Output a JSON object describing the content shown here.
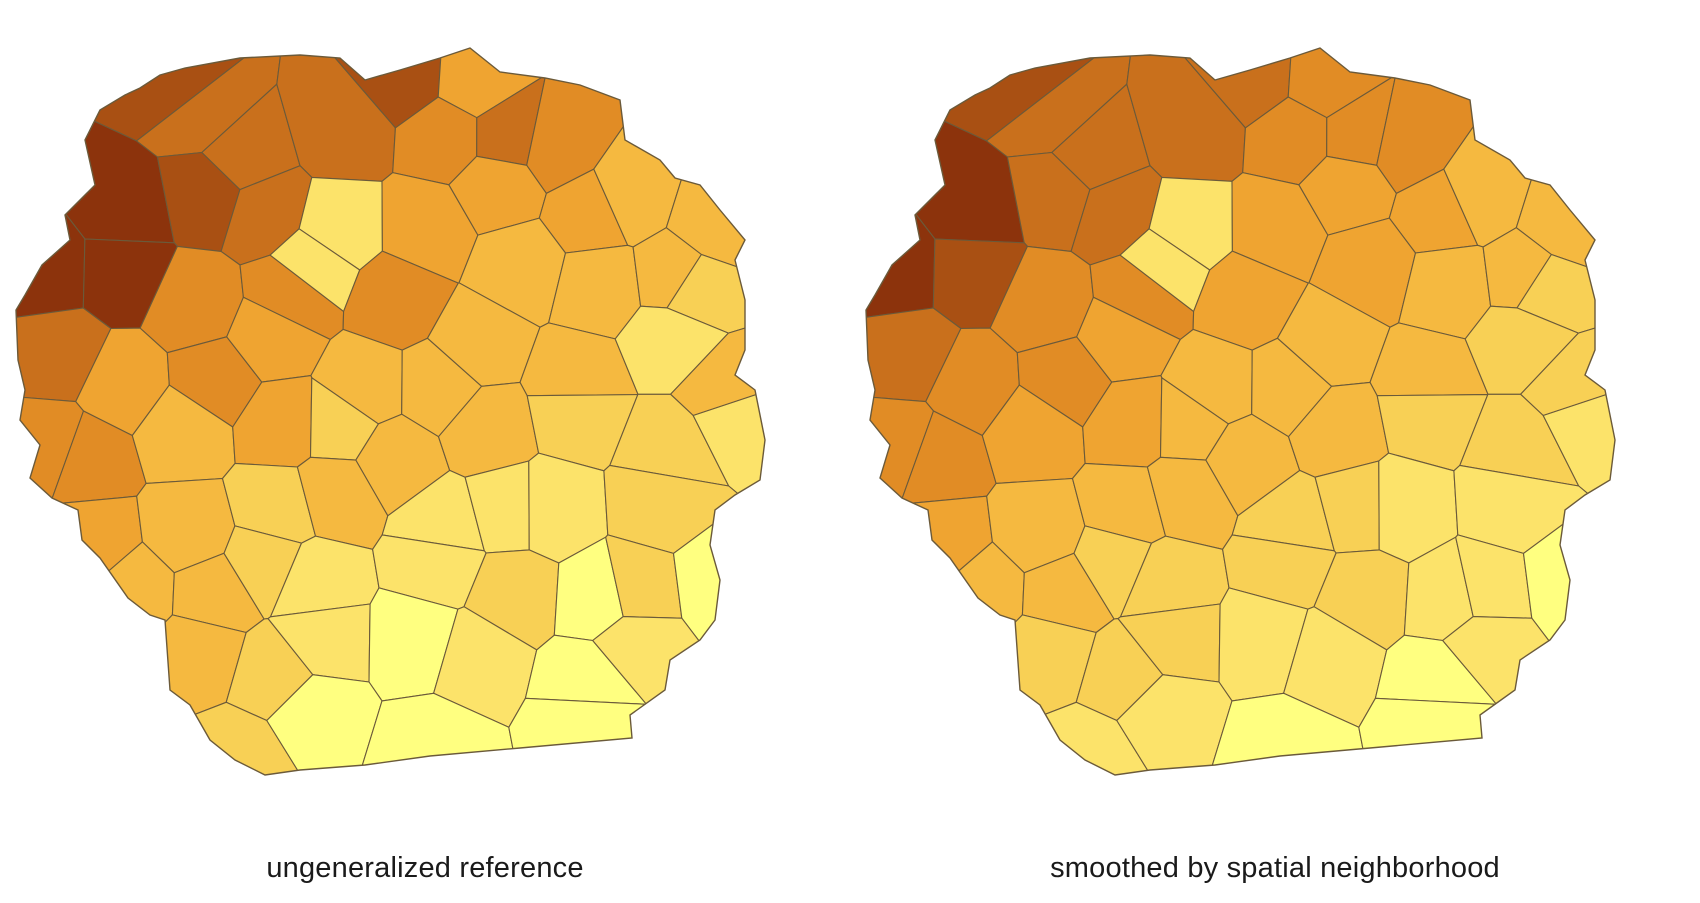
{
  "panels": [
    {
      "id": "left",
      "caption": "ungeneralized reference",
      "smoothed": false
    },
    {
      "id": "right",
      "caption": "smoothed by spatial neighborhood",
      "smoothed": true
    }
  ],
  "colors": {
    "ramp": [
      "#ffff80",
      "#fce36a",
      "#f8d055",
      "#f5b940",
      "#efa431",
      "#e18c25",
      "#c9701c",
      "#a95013",
      "#8c330c",
      "#761a06"
    ],
    "border": "#6b5a3a",
    "background": "#ffffff"
  }
}
